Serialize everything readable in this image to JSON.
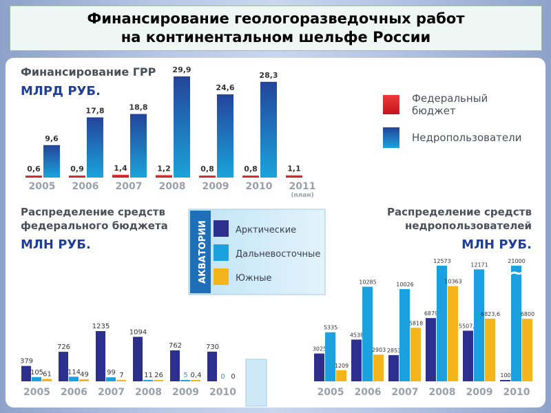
{
  "slide": {
    "title_line1": "Финансирование геологоразведочных работ",
    "title_line2": "на континентальном шельфе России"
  },
  "colors": {
    "federal": "#e0202b",
    "users": "#23509e",
    "arctic": "#2d2f8f",
    "fareast": "#1ba1dd",
    "south": "#f4b41c",
    "year": "#9aa0aa",
    "heading": "#4a4f58"
  },
  "chart_data": [
    {
      "type": "bar",
      "title": "Финансирование ГРР",
      "unit": "МЛРД РУБ.",
      "categories": [
        "2005",
        "2006",
        "2007",
        "2008",
        "2009",
        "2010",
        "2011"
      ],
      "category_note": {
        "2011": "(план)"
      },
      "series": [
        {
          "name": "Федеральный бюджет",
          "values": [
            0.6,
            0.9,
            1.4,
            1.2,
            0.8,
            0.8,
            1.1
          ],
          "labels": [
            "0,6",
            "0,9",
            "1,4",
            "1,2",
            "0,8",
            "0,8",
            "1,1"
          ]
        },
        {
          "name": "Недропользователи",
          "values": [
            9.6,
            17.8,
            18.8,
            29.9,
            24.6,
            28.3,
            null
          ],
          "labels": [
            "9,6",
            "17,8",
            "18,8",
            "29,9",
            "24,6",
            "28,3",
            ""
          ]
        }
      ],
      "legend_position": "right"
    },
    {
      "type": "bar",
      "title_line1": "Распределение средств",
      "title_line2": "федерального бюджета",
      "unit": "МЛН РУБ.",
      "categories": [
        "2005",
        "2006",
        "2007",
        "2008",
        "2009",
        "2010"
      ],
      "series": [
        {
          "name": "Арктические",
          "values": [
            379,
            726,
            1235,
            1094,
            762,
            730
          ],
          "labels": [
            "379",
            "726",
            "1235",
            "1094",
            "762",
            "730"
          ]
        },
        {
          "name": "Дальневосточные",
          "values": [
            105,
            114,
            99,
            11,
            5,
            0
          ],
          "labels": [
            "105",
            "114",
            "99",
            "11",
            "5",
            "0"
          ]
        },
        {
          "name": "Южные",
          "values": [
            61,
            49,
            7,
            26,
            0.4,
            0
          ],
          "labels": [
            "61",
            "49",
            "7",
            "26",
            "0,4",
            "0"
          ]
        }
      ]
    },
    {
      "type": "bar",
      "title_line1": "Распределение средств",
      "title_line2": "недропользователей",
      "unit": "МЛН РУБ.",
      "categories": [
        "2005",
        "2006",
        "2007",
        "2008",
        "2009",
        "2010"
      ],
      "series": [
        {
          "name": "Арктические",
          "values": [
            3025,
            4538,
            2853,
            6879,
            5507.4,
            100
          ],
          "labels": [
            "3025",
            "4538",
            "2853",
            "6879",
            "5507,4",
            "100"
          ]
        },
        {
          "name": "Дальневосточные",
          "values": [
            5335,
            10285,
            10026,
            12573,
            12171,
            21000
          ],
          "labels": [
            "5335",
            "10285",
            "10026",
            "12573",
            "12171",
            "21000"
          ]
        },
        {
          "name": "Южные",
          "values": [
            1209,
            2903,
            5818,
            10363,
            6823.6,
            6800
          ],
          "labels": [
            "1209",
            "2903",
            "5818",
            "10363",
            "6823,6",
            "6800"
          ]
        }
      ],
      "axis_break_symbol": "~"
    }
  ],
  "legend_region": {
    "vertical_label": "АКВАТОРИИ",
    "items": [
      "Арктические",
      "Дальневосточные",
      "Южные"
    ]
  }
}
